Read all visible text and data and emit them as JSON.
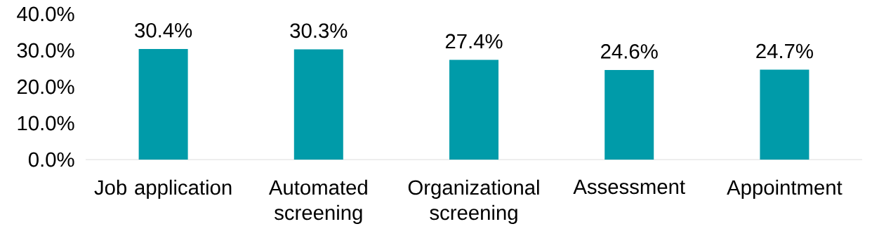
{
  "chart_data": {
    "type": "bar",
    "categories": [
      "Job application",
      "Automated screening",
      "Organizational screening",
      "Assessment",
      "Appointment"
    ],
    "values": [
      30.4,
      30.3,
      27.4,
      24.6,
      24.7
    ],
    "value_labels": [
      "30.4%",
      "30.3%",
      "27.4%",
      "24.6%",
      "24.7%"
    ],
    "color": "#009ba9",
    "ylim": [
      0,
      40
    ],
    "yticks": [
      {
        "value": 0,
        "label": "0.0%"
      },
      {
        "value": 10,
        "label": "10.0%"
      },
      {
        "value": 20,
        "label": "20.0%"
      },
      {
        "value": 30,
        "label": "30.0%"
      },
      {
        "value": 40,
        "label": "40.0%"
      }
    ]
  }
}
